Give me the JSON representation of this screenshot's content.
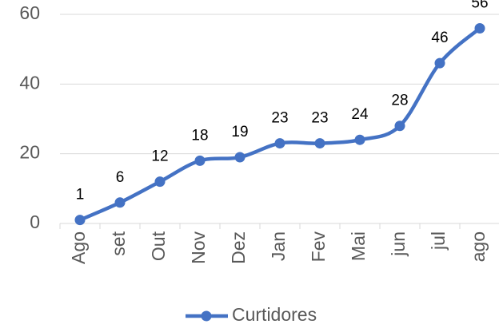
{
  "chart_data": {
    "type": "line",
    "categories": [
      "Ago",
      "set",
      "Out",
      "Nov",
      "Dez",
      "Jan",
      "Fev",
      "Mai",
      "jun",
      "jul",
      "ago"
    ],
    "series": [
      {
        "name": "Curtidores",
        "color": "#4472c4",
        "values": [
          1,
          6,
          12,
          18,
          19,
          23,
          23,
          24,
          28,
          46,
          56
        ]
      }
    ],
    "ylim": [
      0,
      60
    ],
    "yticks": [
      0,
      20,
      40,
      60
    ],
    "grid": true,
    "smooth": true,
    "legend": "bottom"
  }
}
